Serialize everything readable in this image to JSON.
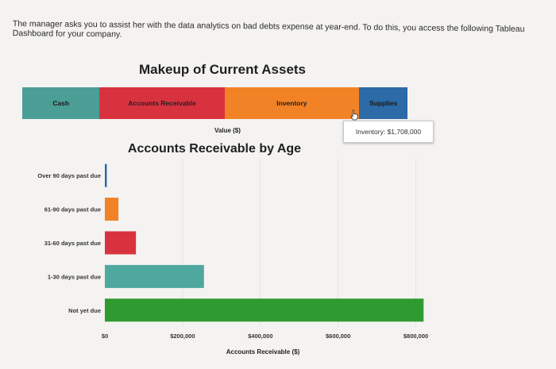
{
  "question": {
    "text": "The manager asks you to assist her with the data analytics on bad debts expense at year-end. To do this, you access the following Tableau Dashboard for your company."
  },
  "chart_data": [
    {
      "type": "bar",
      "orientation": "horizontal-stacked",
      "title": "Makeup of Current Assets",
      "xlabel": "Value ($)",
      "categories": [
        "Cash",
        "Accounts Receivable",
        "Inventory",
        "Supplies"
      ],
      "values": [
        980000,
        1580000,
        1708000,
        610000
      ],
      "colors": [
        "#4b9e96",
        "#d9323f",
        "#f28226",
        "#2c6aa8"
      ],
      "tooltip": {
        "label": "Inventory:",
        "value": "$1,708,000"
      }
    },
    {
      "type": "bar",
      "orientation": "horizontal",
      "title": "Accounts Receivable by Age",
      "xlabel": "Accounts Receivable ($)",
      "ylabel": "",
      "categories": [
        "Over 90 days past due",
        "61-90 days past due",
        "31-60 days past due",
        "1-30 days past due",
        "Not yet due"
      ],
      "values": [
        5000,
        35000,
        80000,
        255000,
        820000
      ],
      "colors": [
        "#2c6aa8",
        "#f28226",
        "#d9323f",
        "#4fa8a0",
        "#2f9a2f"
      ],
      "xlim": [
        0,
        850000
      ],
      "xticks": [
        0,
        200000,
        400000,
        600000,
        800000
      ],
      "xtick_labels": [
        "$0",
        "$200,000",
        "$400,000",
        "$600,000",
        "$800,000"
      ],
      "grid": true
    }
  ]
}
